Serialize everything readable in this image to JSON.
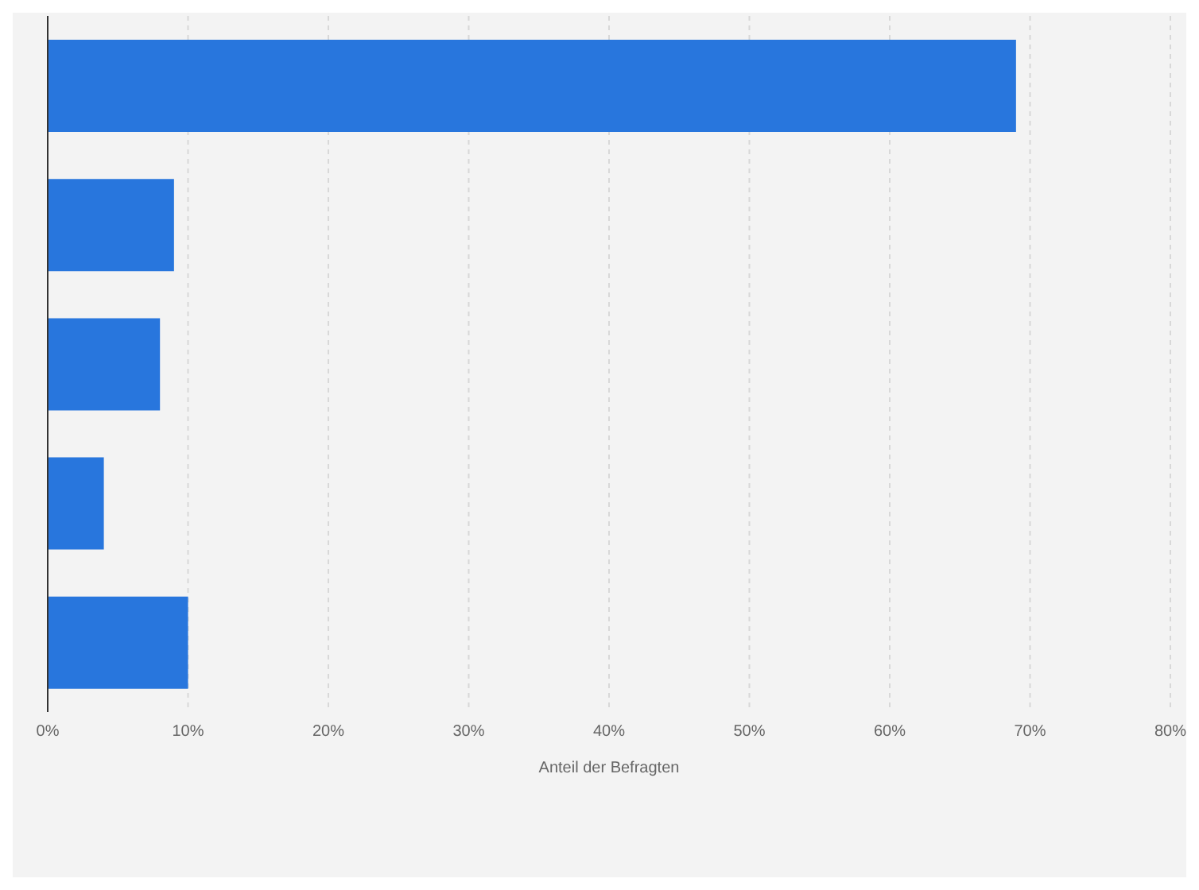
{
  "chart_data": {
    "type": "bar",
    "orientation": "horizontal",
    "xlabel": "Anteil der Befragten",
    "categories": [
      null,
      null,
      null,
      null,
      null
    ],
    "values": [
      69,
      9,
      8,
      4,
      10
    ],
    "color": "#2876dd",
    "xlim": [
      0,
      80
    ],
    "xticks": [
      {
        "value": 0,
        "label": "0%"
      },
      {
        "value": 10,
        "label": "10%"
      },
      {
        "value": 20,
        "label": "20%"
      },
      {
        "value": 30,
        "label": "30%"
      },
      {
        "value": 40,
        "label": "40%"
      },
      {
        "value": 50,
        "label": "50%"
      },
      {
        "value": 60,
        "label": "60%"
      },
      {
        "value": 70,
        "label": "70%"
      },
      {
        "value": 80,
        "label": "80%"
      }
    ],
    "grid": "x",
    "tick_labels": "x"
  }
}
